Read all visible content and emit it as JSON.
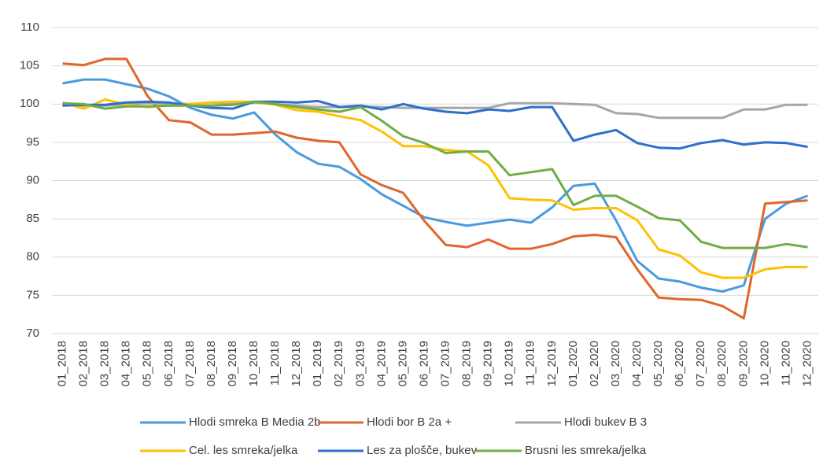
{
  "chart_data": {
    "type": "line",
    "categories": [
      "01_2018",
      "02_2018",
      "03_2018",
      "04_2018",
      "05_2018",
      "06_2018",
      "07_2018",
      "08_2018",
      "09_2018",
      "10_2018",
      "11_2018",
      "12_2018",
      "01_2019",
      "02_2019",
      "03_2019",
      "04_2019",
      "05_2019",
      "06_2019",
      "07_2019",
      "08_2019",
      "09_2019",
      "10_2019",
      "11_2019",
      "12_2019",
      "01_2020",
      "02_2020",
      "03_2020",
      "04_2020",
      "05_2020",
      "06_2020",
      "07_2020",
      "08_2020",
      "09_2020",
      "10_2020",
      "11_2020",
      "12_2020"
    ],
    "series": [
      {
        "name": "Hlodi smreka B Media 2b",
        "color": "#4a9ae0",
        "values": [
          102.7,
          103.2,
          103.2,
          102.6,
          102.0,
          101.0,
          99.5,
          98.6,
          98.1,
          98.9,
          96.0,
          93.7,
          92.2,
          91.8,
          90.2,
          88.2,
          86.7,
          85.2,
          84.6,
          84.1,
          84.5,
          84.9,
          84.5,
          86.5,
          89.3,
          89.6,
          84.8,
          79.5,
          77.2,
          76.8,
          76.0,
          75.5,
          76.3,
          85.0,
          87.0,
          88.0
        ]
      },
      {
        "name": "Hlodi bor B 2a +",
        "color": "#e0662c",
        "values": [
          105.3,
          105.1,
          105.9,
          105.9,
          101.0,
          97.9,
          97.6,
          96.0,
          96.0,
          96.2,
          96.4,
          95.6,
          95.2,
          95.0,
          90.8,
          89.4,
          88.4,
          84.7,
          81.6,
          81.3,
          82.3,
          81.1,
          81.1,
          81.7,
          82.7,
          82.9,
          82.6,
          78.4,
          74.7,
          74.5,
          74.4,
          73.6,
          72.0,
          87.0,
          87.2,
          87.4
        ]
      },
      {
        "name": "Hlodi bukev B 3",
        "color": "#a6a6a6",
        "values": [
          100.0,
          99.8,
          99.8,
          100.0,
          100.1,
          100.1,
          100.0,
          100.2,
          100.0,
          100.2,
          100.0,
          99.8,
          99.6,
          99.6,
          99.7,
          99.6,
          99.5,
          99.5,
          99.5,
          99.5,
          99.5,
          100.1,
          100.1,
          100.1,
          100.0,
          99.9,
          98.8,
          98.7,
          98.2,
          98.2,
          98.2,
          98.2,
          99.3,
          99.3,
          99.9,
          99.9
        ]
      },
      {
        "name": "Cel. les smreka/jelka",
        "color": "#ffc000",
        "values": [
          100.2,
          99.4,
          100.6,
          99.9,
          99.6,
          99.8,
          100.0,
          100.2,
          100.3,
          100.3,
          99.9,
          99.2,
          99.0,
          98.4,
          97.9,
          96.4,
          94.5,
          94.5,
          94.0,
          93.8,
          92.0,
          87.7,
          87.5,
          87.4,
          86.2,
          86.4,
          86.4,
          84.8,
          81.0,
          80.2,
          78.0,
          77.3,
          77.3,
          78.4,
          78.7,
          78.7
        ]
      },
      {
        "name": "Les za plošče, bukev",
        "color": "#2e6fc9",
        "values": [
          99.8,
          99.9,
          99.9,
          100.2,
          100.3,
          100.2,
          99.8,
          99.5,
          99.4,
          100.3,
          100.3,
          100.2,
          100.4,
          99.6,
          99.8,
          99.3,
          100.0,
          99.4,
          99.0,
          98.8,
          99.3,
          99.1,
          99.6,
          99.6,
          95.2,
          96.0,
          96.6,
          94.9,
          94.3,
          94.2,
          94.9,
          95.3,
          94.7,
          95.0,
          94.9,
          94.4
        ]
      },
      {
        "name": "Brusni les smreka/jelka",
        "color": "#70ad47",
        "values": [
          100.1,
          100.0,
          99.4,
          99.7,
          99.7,
          99.8,
          99.8,
          99.8,
          99.9,
          100.3,
          100.0,
          99.6,
          99.3,
          99.0,
          99.6,
          97.8,
          95.8,
          94.9,
          93.6,
          93.8,
          93.8,
          90.7,
          91.1,
          91.5,
          86.8,
          88.0,
          88.0,
          86.6,
          85.1,
          84.8,
          82.0,
          81.2,
          81.2,
          81.2,
          81.7,
          81.3
        ]
      }
    ],
    "ylim": [
      70,
      110
    ],
    "yticks": [
      70,
      75,
      80,
      85,
      90,
      95,
      100,
      105,
      110
    ],
    "grid": true
  }
}
